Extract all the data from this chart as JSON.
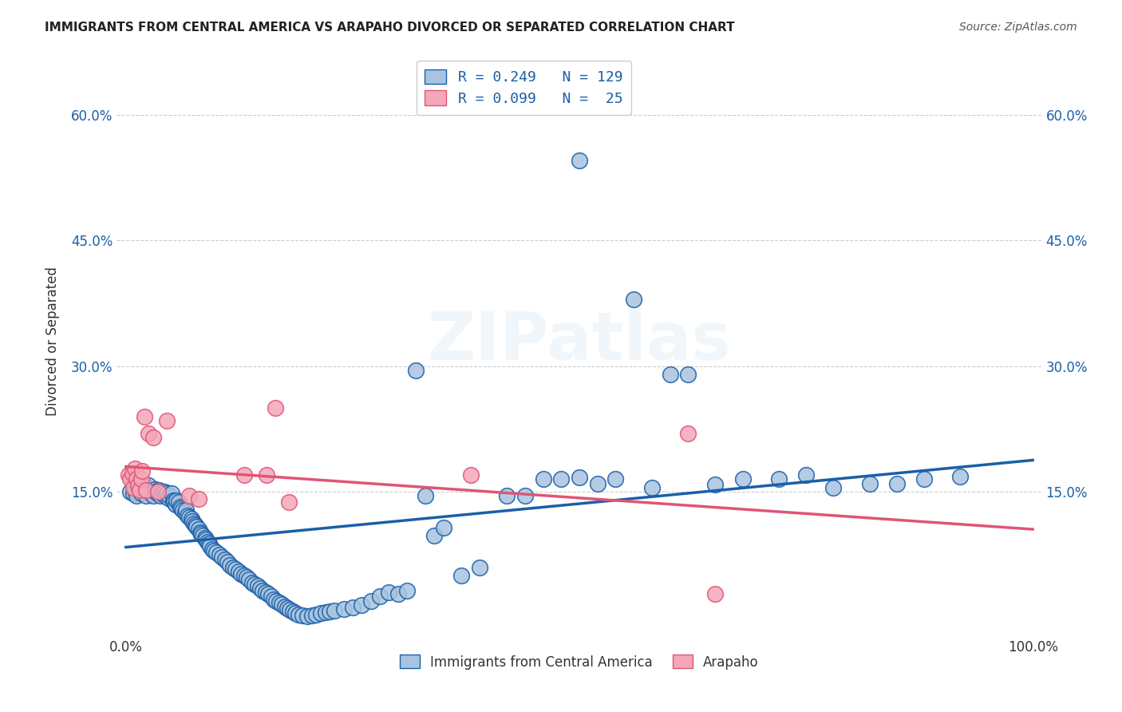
{
  "title": "IMMIGRANTS FROM CENTRAL AMERICA VS ARAPAHO DIVORCED OR SEPARATED CORRELATION CHART",
  "source": "Source: ZipAtlas.com",
  "ylabel": "Divorced or Separated",
  "xlabel": "",
  "xlim": [
    0,
    1.0
  ],
  "ylim": [
    -0.02,
    0.68
  ],
  "x_ticks": [
    0.0,
    0.25,
    0.5,
    0.75,
    1.0
  ],
  "x_tick_labels": [
    "0.0%",
    "",
    "",
    "",
    "100.0%"
  ],
  "y_ticks": [
    0.15,
    0.3,
    0.45,
    0.6
  ],
  "y_tick_labels": [
    "15.0%",
    "30.0%",
    "45.0%",
    "60.0%"
  ],
  "blue_R": 0.249,
  "blue_N": 129,
  "pink_R": 0.099,
  "pink_N": 25,
  "blue_color": "#a8c4e0",
  "blue_line_color": "#1a5fa8",
  "pink_color": "#f4a7b9",
  "pink_line_color": "#e05575",
  "legend_label_blue": "Immigrants from Central America",
  "legend_label_pink": "Arapaho",
  "watermark": "ZIPatlas",
  "blue_scatter_x": [
    0.005,
    0.008,
    0.01,
    0.012,
    0.013,
    0.015,
    0.017,
    0.018,
    0.02,
    0.022,
    0.023,
    0.025,
    0.027,
    0.028,
    0.03,
    0.032,
    0.033,
    0.035,
    0.036,
    0.038,
    0.04,
    0.042,
    0.043,
    0.045,
    0.047,
    0.048,
    0.05,
    0.052,
    0.053,
    0.055,
    0.056,
    0.058,
    0.06,
    0.061,
    0.063,
    0.065,
    0.066,
    0.068,
    0.07,
    0.072,
    0.073,
    0.075,
    0.077,
    0.078,
    0.08,
    0.082,
    0.083,
    0.085,
    0.087,
    0.088,
    0.09,
    0.092,
    0.093,
    0.095,
    0.097,
    0.1,
    0.103,
    0.106,
    0.109,
    0.112,
    0.115,
    0.118,
    0.121,
    0.124,
    0.127,
    0.13,
    0.133,
    0.136,
    0.139,
    0.142,
    0.145,
    0.148,
    0.151,
    0.154,
    0.157,
    0.16,
    0.163,
    0.166,
    0.169,
    0.172,
    0.175,
    0.178,
    0.181,
    0.184,
    0.187,
    0.19,
    0.195,
    0.2,
    0.205,
    0.21,
    0.215,
    0.22,
    0.225,
    0.23,
    0.24,
    0.25,
    0.26,
    0.27,
    0.28,
    0.29,
    0.3,
    0.31,
    0.32,
    0.33,
    0.34,
    0.35,
    0.37,
    0.39,
    0.42,
    0.44,
    0.46,
    0.48,
    0.5,
    0.52,
    0.54,
    0.56,
    0.58,
    0.6,
    0.62,
    0.65,
    0.5,
    0.68,
    0.72,
    0.75,
    0.78,
    0.82,
    0.85,
    0.88,
    0.92
  ],
  "blue_scatter_y": [
    0.15,
    0.148,
    0.152,
    0.145,
    0.155,
    0.16,
    0.148,
    0.153,
    0.158,
    0.145,
    0.155,
    0.158,
    0.15,
    0.148,
    0.145,
    0.153,
    0.15,
    0.148,
    0.152,
    0.145,
    0.148,
    0.15,
    0.145,
    0.148,
    0.143,
    0.145,
    0.148,
    0.14,
    0.138,
    0.135,
    0.14,
    0.138,
    0.132,
    0.13,
    0.128,
    0.125,
    0.128,
    0.122,
    0.12,
    0.118,
    0.115,
    0.112,
    0.11,
    0.108,
    0.105,
    0.102,
    0.1,
    0.098,
    0.095,
    0.093,
    0.09,
    0.088,
    0.085,
    0.082,
    0.08,
    0.078,
    0.075,
    0.072,
    0.069,
    0.066,
    0.063,
    0.06,
    0.058,
    0.055,
    0.052,
    0.05,
    0.048,
    0.045,
    0.042,
    0.04,
    0.038,
    0.035,
    0.032,
    0.03,
    0.028,
    0.025,
    0.022,
    0.02,
    0.018,
    0.016,
    0.013,
    0.011,
    0.009,
    0.007,
    0.005,
    0.004,
    0.003,
    0.002,
    0.003,
    0.004,
    0.005,
    0.006,
    0.007,
    0.008,
    0.01,
    0.012,
    0.015,
    0.02,
    0.025,
    0.03,
    0.028,
    0.032,
    0.295,
    0.145,
    0.098,
    0.107,
    0.05,
    0.06,
    0.145,
    0.145,
    0.165,
    0.165,
    0.167,
    0.16,
    0.165,
    0.38,
    0.155,
    0.29,
    0.29,
    0.159,
    0.545,
    0.165,
    0.165,
    0.17,
    0.155,
    0.16,
    0.16,
    0.165,
    0.168
  ],
  "pink_scatter_x": [
    0.003,
    0.005,
    0.007,
    0.008,
    0.01,
    0.012,
    0.013,
    0.015,
    0.017,
    0.018,
    0.02,
    0.022,
    0.025,
    0.03,
    0.035,
    0.045,
    0.07,
    0.08,
    0.13,
    0.155,
    0.165,
    0.18,
    0.38,
    0.62,
    0.65
  ],
  "pink_scatter_y": [
    0.17,
    0.165,
    0.172,
    0.155,
    0.178,
    0.165,
    0.158,
    0.152,
    0.165,
    0.175,
    0.24,
    0.152,
    0.22,
    0.215,
    0.15,
    0.235,
    0.145,
    0.142,
    0.17,
    0.17,
    0.25,
    0.138,
    0.17,
    0.22,
    0.028
  ]
}
